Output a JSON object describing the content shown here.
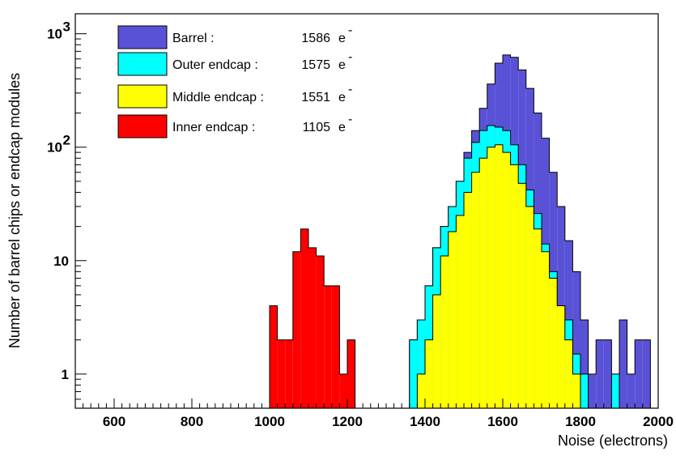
{
  "chart_data": {
    "type": "histogram",
    "xlabel": "Noise (electrons)",
    "ylabel": "Number of barrel chips or endcap modules",
    "xlim": [
      500,
      2000
    ],
    "ylim": [
      0.5,
      1500
    ],
    "yscale": "log",
    "bin_width": 20,
    "x_ticks": [
      {
        "value": 600,
        "label": "600"
      },
      {
        "value": 800,
        "label": "800"
      },
      {
        "value": 1000,
        "label": "1000"
      },
      {
        "value": 1200,
        "label": "1200"
      },
      {
        "value": 1400,
        "label": "1400"
      },
      {
        "value": 1600,
        "label": "1600"
      },
      {
        "value": 1800,
        "label": "1800"
      },
      {
        "value": 2000,
        "label": "2000"
      }
    ],
    "y_ticks": [
      {
        "value": 1,
        "label": "1"
      },
      {
        "value": 10,
        "label": "10"
      },
      {
        "value": 100,
        "label": "10",
        "sup": "2"
      },
      {
        "value": 1000,
        "label": "10",
        "sup": "3"
      }
    ],
    "legend_position": "top-left",
    "series": [
      {
        "name": "Barrel :",
        "mean": "1586",
        "unit": "e",
        "unit_sup": "-",
        "color": "#5a52d6",
        "bins": [
          [
            1340,
            1360,
            0.5
          ],
          [
            1360,
            1380,
            2
          ],
          [
            1380,
            1400,
            3
          ],
          [
            1400,
            1420,
            6
          ],
          [
            1420,
            1440,
            13
          ],
          [
            1440,
            1460,
            20
          ],
          [
            1460,
            1480,
            30
          ],
          [
            1480,
            1500,
            50
          ],
          [
            1500,
            1520,
            90
          ],
          [
            1520,
            1540,
            140
          ],
          [
            1540,
            1560,
            220
          ],
          [
            1560,
            1580,
            360
          ],
          [
            1580,
            1600,
            550
          ],
          [
            1600,
            1620,
            650
          ],
          [
            1620,
            1640,
            620
          ],
          [
            1640,
            1660,
            480
          ],
          [
            1660,
            1680,
            330
          ],
          [
            1680,
            1700,
            200
          ],
          [
            1700,
            1720,
            120
          ],
          [
            1720,
            1740,
            60
          ],
          [
            1740,
            1760,
            30
          ],
          [
            1760,
            1780,
            15
          ],
          [
            1780,
            1800,
            8
          ],
          [
            1800,
            1820,
            3
          ],
          [
            1820,
            1840,
            1
          ],
          [
            1840,
            1860,
            2
          ],
          [
            1860,
            1880,
            2
          ],
          [
            1880,
            1900,
            1
          ],
          [
            1900,
            1920,
            3
          ],
          [
            1920,
            1940,
            1
          ],
          [
            1940,
            1960,
            2
          ],
          [
            1960,
            1980,
            2
          ]
        ]
      },
      {
        "name": "Outer endcap :",
        "mean": "1575",
        "unit": "e",
        "unit_sup": "-",
        "color": "#00ffff",
        "bins": [
          [
            1340,
            1360,
            0.5
          ],
          [
            1360,
            1380,
            2
          ],
          [
            1380,
            1400,
            3
          ],
          [
            1400,
            1420,
            6
          ],
          [
            1420,
            1440,
            13
          ],
          [
            1440,
            1460,
            20
          ],
          [
            1460,
            1480,
            30
          ],
          [
            1480,
            1500,
            50
          ],
          [
            1500,
            1520,
            80
          ],
          [
            1520,
            1540,
            110
          ],
          [
            1540,
            1560,
            140
          ],
          [
            1560,
            1580,
            155
          ],
          [
            1580,
            1600,
            150
          ],
          [
            1600,
            1620,
            140
          ],
          [
            1620,
            1640,
            105
          ],
          [
            1640,
            1660,
            70
          ],
          [
            1660,
            1680,
            42
          ],
          [
            1680,
            1700,
            26
          ],
          [
            1700,
            1720,
            14
          ],
          [
            1720,
            1740,
            8
          ],
          [
            1740,
            1760,
            4
          ],
          [
            1760,
            1780,
            3
          ],
          [
            1780,
            1800,
            1.5
          ],
          [
            1800,
            1820,
            1
          ],
          [
            1820,
            1840,
            0.5
          ],
          [
            1840,
            1860,
            0.5
          ],
          [
            1860,
            1880,
            0.5
          ],
          [
            1880,
            1900,
            1
          ]
        ]
      },
      {
        "name": "Middle endcap :",
        "mean": "1551",
        "unit": "e",
        "unit_sup": "-",
        "color": "#ffff00",
        "bins": [
          [
            1380,
            1400,
            1
          ],
          [
            1400,
            1420,
            2
          ],
          [
            1420,
            1440,
            5
          ],
          [
            1440,
            1460,
            11
          ],
          [
            1460,
            1480,
            18
          ],
          [
            1480,
            1500,
            25
          ],
          [
            1500,
            1520,
            40
          ],
          [
            1520,
            1540,
            60
          ],
          [
            1540,
            1560,
            80
          ],
          [
            1560,
            1580,
            100
          ],
          [
            1580,
            1600,
            105
          ],
          [
            1600,
            1620,
            90
          ],
          [
            1620,
            1640,
            70
          ],
          [
            1640,
            1660,
            48
          ],
          [
            1660,
            1680,
            30
          ],
          [
            1680,
            1700,
            19
          ],
          [
            1700,
            1720,
            12
          ],
          [
            1720,
            1740,
            7
          ],
          [
            1740,
            1760,
            4
          ],
          [
            1760,
            1780,
            2
          ],
          [
            1780,
            1800,
            1
          ]
        ]
      },
      {
        "name": "Inner endcap :",
        "mean": "1105",
        "unit": "e",
        "unit_sup": "-",
        "color": "#ff0000",
        "bins": [
          [
            1000,
            1020,
            4
          ],
          [
            1020,
            1040,
            2
          ],
          [
            1040,
            1060,
            2
          ],
          [
            1060,
            1080,
            12
          ],
          [
            1080,
            1100,
            19
          ],
          [
            1100,
            1120,
            13
          ],
          [
            1120,
            1140,
            11
          ],
          [
            1140,
            1160,
            6
          ],
          [
            1160,
            1180,
            6
          ],
          [
            1180,
            1200,
            1
          ],
          [
            1200,
            1220,
            2
          ]
        ]
      }
    ]
  }
}
